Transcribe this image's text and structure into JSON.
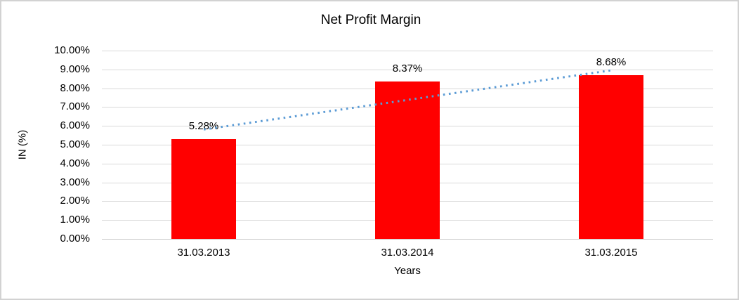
{
  "chart_data": {
    "type": "bar",
    "title": "Net Profit Margin",
    "xlabel": "Years",
    "ylabel": "IN (%)",
    "categories": [
      "31.03.2013",
      "31.03.2014",
      "31.03.2015"
    ],
    "values": [
      5.28,
      8.37,
      8.68
    ],
    "data_labels": [
      "5.28%",
      "8.37%",
      "8.68%"
    ],
    "ylim": [
      0,
      10
    ],
    "ytick_step": 1,
    "ytick_labels": [
      "0.00%",
      "1.00%",
      "2.00%",
      "3.00%",
      "4.00%",
      "5.00%",
      "6.00%",
      "7.00%",
      "8.00%",
      "9.00%",
      "10.00%"
    ],
    "grid": "horizontal",
    "legend": "none",
    "bar_color": "#ff0000",
    "trendline": {
      "type": "linear",
      "style": "dotted",
      "color": "#5b9bd5",
      "start_value": 5.81,
      "end_value": 8.95
    },
    "colors": {
      "gridline": "#d9d9d9",
      "axis_line": "#c9c9c9",
      "text": "#000000",
      "frame_border": "#d2d2d2",
      "background": "#ffffff"
    }
  }
}
